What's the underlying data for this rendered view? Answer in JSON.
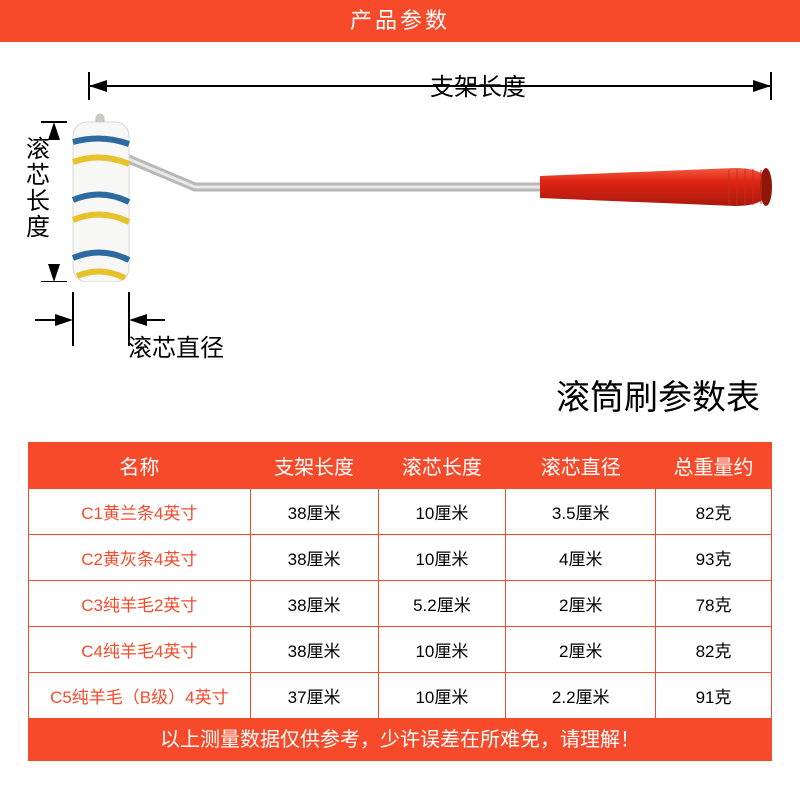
{
  "colors": {
    "header_bg": "#f64a2b",
    "table_border": "#f64a2b",
    "th_bg": "#f64a2b",
    "td_name_color": "#f64a2b",
    "footnote_bg": "#f64a2b",
    "handle_red": "#e02412",
    "handle_dark": "#a91a0d",
    "wire_color": "#b8b8b8",
    "roller_body": "#f7f7f5",
    "roller_stripe_blue": "#2c6aa0",
    "roller_stripe_yellow": "#e8c22a",
    "dim_line": "#000000"
  },
  "header": {
    "title": "产品参数"
  },
  "diagram_labels": {
    "bracket_length": "支架长度",
    "roller_length": "滚芯长度",
    "roller_diameter": "滚芯直径"
  },
  "table": {
    "title": "滚筒刷参数表",
    "columns": [
      "名称",
      "支架长度",
      "滚芯长度",
      "滚芯直径",
      "总重量约"
    ],
    "rows": [
      [
        "C1黄兰条4英寸",
        "38厘米",
        "10厘米",
        "3.5厘米",
        "82克"
      ],
      [
        "C2黄灰条4英寸",
        "38厘米",
        "10厘米",
        "4厘米",
        "93克"
      ],
      [
        "C3纯羊毛2英寸",
        "38厘米",
        "5.2厘米",
        "2厘米",
        "78克"
      ],
      [
        "C4纯羊毛4英寸",
        "38厘米",
        "10厘米",
        "2厘米",
        "82克"
      ],
      [
        "C5纯羊毛（B级）4英寸",
        "37厘米",
        "10厘米",
        "2.2厘米",
        "91克"
      ]
    ]
  },
  "footnote": "以上测量数据仅供参考，少许误差在所难免，请理解！"
}
